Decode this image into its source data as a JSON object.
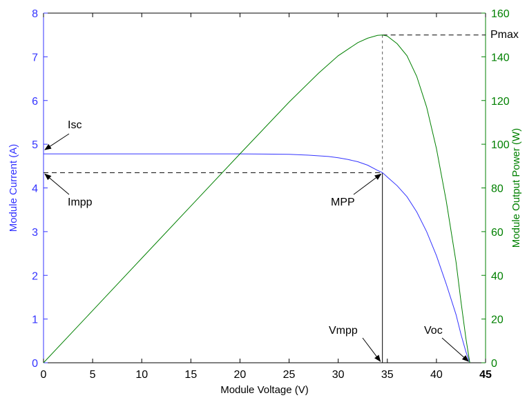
{
  "chart_data": {
    "type": "line",
    "xlabel": "Module Voltage (V)",
    "ylabel_left": "Module Current (A)",
    "ylabel_right": "Module Output Power (W)",
    "xlim": [
      0,
      45
    ],
    "ylim_left": [
      0,
      8
    ],
    "ylim_right": [
      0,
      160
    ],
    "x_ticks": [
      0,
      5,
      10,
      15,
      20,
      25,
      30,
      35,
      40,
      45
    ],
    "y_left_ticks": [
      0,
      1,
      2,
      3,
      4,
      5,
      6,
      7,
      8
    ],
    "y_right_ticks": [
      0,
      20,
      40,
      60,
      80,
      100,
      120,
      140,
      160
    ],
    "grid": false,
    "colors": {
      "current": "#3333ff",
      "power": "#008000",
      "axes": "#000000"
    },
    "series": [
      {
        "axis": "left",
        "x": [
          0,
          5,
          10,
          15,
          20,
          25,
          27,
          29,
          30,
          31,
          32,
          33,
          34,
          34.5,
          35,
          36,
          37,
          38,
          39,
          40,
          41,
          42,
          42.5,
          43,
          43.4
        ],
        "values": [
          4.78,
          4.78,
          4.78,
          4.78,
          4.78,
          4.77,
          4.75,
          4.72,
          4.69,
          4.65,
          4.6,
          4.52,
          4.4,
          4.35,
          4.25,
          4.05,
          3.8,
          3.45,
          3.0,
          2.45,
          1.8,
          1.1,
          0.65,
          0.25,
          0
        ]
      },
      {
        "axis": "right",
        "x": [
          0,
          5,
          10,
          15,
          20,
          25,
          28,
          30,
          32,
          33,
          34,
          34.5,
          35,
          36,
          37,
          38,
          39,
          40,
          41,
          42,
          42.5,
          43,
          43.4
        ],
        "values": [
          0,
          23.9,
          47.8,
          71.7,
          95.6,
          119.3,
          132.5,
          140.5,
          146.5,
          148.5,
          149.8,
          150,
          149.5,
          146,
          140.5,
          131,
          117,
          98,
          74,
          46,
          28,
          11,
          0
        ]
      }
    ],
    "annotations": {
      "isc": "Isc",
      "impp": "Impp",
      "mpp": "MPP",
      "pmax": "Pmax",
      "vmpp": "Vmpp",
      "voc": "Voc"
    },
    "key_points": {
      "isc": 4.78,
      "impp": 4.35,
      "vmpp": 34.5,
      "voc": 43.4,
      "pmax": 150
    }
  }
}
